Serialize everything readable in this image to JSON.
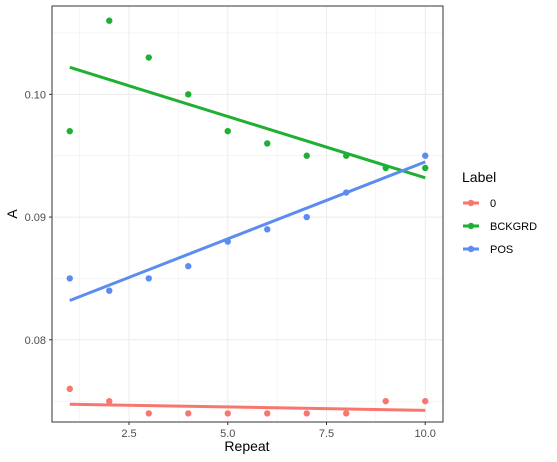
{
  "chart_data": {
    "type": "scatter",
    "title": "",
    "xlabel": "Repeat",
    "ylabel": "A",
    "xlim": [
      0.55,
      10.45
    ],
    "ylim": [
      0.0733,
      0.1072
    ],
    "x_ticks": [
      2.5,
      5.0,
      7.5,
      10.0
    ],
    "x_tick_labels": [
      "2.5",
      "5.0",
      "7.5",
      "10.0"
    ],
    "y_ticks": [
      0.08,
      0.09,
      0.1
    ],
    "y_tick_labels": [
      "0.08",
      "0.09",
      "0.10"
    ],
    "grid": true,
    "legend": {
      "title": "Label",
      "position": "right"
    },
    "series": [
      {
        "name": "0",
        "color": "#F8766D",
        "points": [
          {
            "x": 1,
            "y": 0.076
          },
          {
            "x": 2,
            "y": 0.075
          },
          {
            "x": 3,
            "y": 0.074
          },
          {
            "x": 4,
            "y": 0.074
          },
          {
            "x": 5,
            "y": 0.074
          },
          {
            "x": 6,
            "y": 0.074
          },
          {
            "x": 7,
            "y": 0.074
          },
          {
            "x": 8,
            "y": 0.074
          },
          {
            "x": 9,
            "y": 0.075
          },
          {
            "x": 10,
            "y": 0.075
          }
        ],
        "fit": {
          "x": [
            1,
            10
          ],
          "y": [
            0.07475,
            0.07425
          ]
        }
      },
      {
        "name": "BCKGRD",
        "color": "#1FAF32",
        "points": [
          {
            "x": 1,
            "y": 0.097
          },
          {
            "x": 2,
            "y": 0.106
          },
          {
            "x": 3,
            "y": 0.103
          },
          {
            "x": 4,
            "y": 0.1
          },
          {
            "x": 5,
            "y": 0.097
          },
          {
            "x": 6,
            "y": 0.096
          },
          {
            "x": 7,
            "y": 0.095
          },
          {
            "x": 8,
            "y": 0.095
          },
          {
            "x": 9,
            "y": 0.094
          },
          {
            "x": 10,
            "y": 0.094
          }
        ],
        "fit": {
          "x": [
            1,
            10
          ],
          "y": [
            0.1022,
            0.0932
          ]
        }
      },
      {
        "name": "POS",
        "color": "#5B8CF0",
        "points": [
          {
            "x": 1,
            "y": 0.085
          },
          {
            "x": 2,
            "y": 0.084
          },
          {
            "x": 3,
            "y": 0.085
          },
          {
            "x": 4,
            "y": 0.086
          },
          {
            "x": 5,
            "y": 0.088
          },
          {
            "x": 6,
            "y": 0.089
          },
          {
            "x": 7,
            "y": 0.09
          },
          {
            "x": 8,
            "y": 0.092
          },
          {
            "x": 10,
            "y": 0.095
          }
        ],
        "fit": {
          "x": [
            1,
            10
          ],
          "y": [
            0.0832,
            0.0945
          ]
        }
      }
    ]
  }
}
